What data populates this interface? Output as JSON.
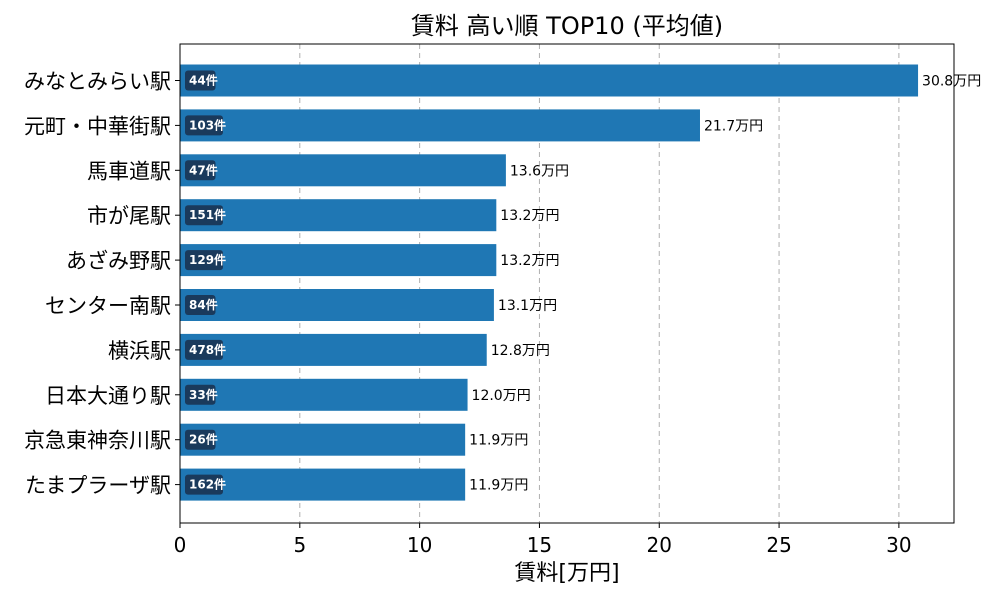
{
  "chart_data": {
    "type": "bar",
    "orientation": "horizontal",
    "title": "賃料 高い順 TOP10 (平均値)",
    "xlabel": "賃料[万円]",
    "ylabel": "",
    "xlim": [
      0,
      32.3
    ],
    "xticks": [
      0,
      5,
      10,
      15,
      20,
      25,
      30
    ],
    "grid": "x-dashed",
    "bar_color": "#1f77b4",
    "badge_color": "#1a3a5c",
    "value_suffix": "万円",
    "categories": [
      "みなとみらい駅",
      "元町・中華街駅",
      "馬車道駅",
      "市が尾駅",
      "あざみ野駅",
      "センター南駅",
      "横浜駅",
      "日本大通り駅",
      "京急東神奈川駅",
      "たまプラーザ駅"
    ],
    "values": [
      30.8,
      21.7,
      13.6,
      13.2,
      13.2,
      13.1,
      12.8,
      12.0,
      11.9,
      11.9
    ],
    "value_labels": [
      "30.8万円",
      "21.7万円",
      "13.6万円",
      "13.2万円",
      "13.2万円",
      "13.1万円",
      "12.8万円",
      "12.0万円",
      "11.9万円",
      "11.9万円"
    ],
    "counts": [
      "44件",
      "103件",
      "47件",
      "151件",
      "129件",
      "84件",
      "478件",
      "33件",
      "26件",
      "162件"
    ]
  }
}
